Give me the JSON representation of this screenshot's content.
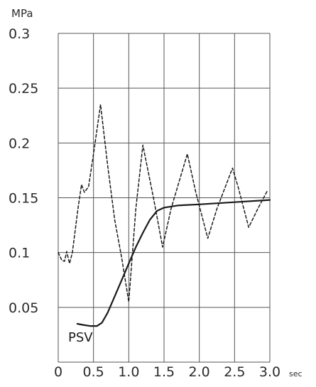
{
  "chart_data": {
    "type": "line",
    "ylabel": "MPa",
    "xlabel": "sec",
    "xlim": [
      0,
      3.0
    ],
    "ylim": [
      0,
      0.3
    ],
    "x_ticks": [
      "0",
      "0.5",
      "1.0",
      "1.5",
      "2.0",
      "2.5",
      "3.0"
    ],
    "y_ticks": [
      "0.05",
      "0.1",
      "0.15",
      "0.2",
      "0.25",
      "0.3"
    ],
    "y_tick_values": [
      0.05,
      0.1,
      0.15,
      0.2,
      0.25,
      0.3
    ],
    "grid": true,
    "series": [
      {
        "name": "PSV",
        "style": "solid",
        "color": "#1a1a1a",
        "points": [
          [
            0.27,
            0.035
          ],
          [
            0.35,
            0.034
          ],
          [
            0.45,
            0.033
          ],
          [
            0.55,
            0.033
          ],
          [
            0.62,
            0.036
          ],
          [
            0.7,
            0.045
          ],
          [
            0.8,
            0.06
          ],
          [
            0.9,
            0.075
          ],
          [
            1.0,
            0.09
          ],
          [
            1.1,
            0.105
          ],
          [
            1.2,
            0.118
          ],
          [
            1.3,
            0.13
          ],
          [
            1.4,
            0.138
          ],
          [
            1.5,
            0.141
          ],
          [
            1.7,
            0.143
          ],
          [
            2.0,
            0.144
          ],
          [
            2.5,
            0.146
          ],
          [
            3.0,
            0.148
          ]
        ]
      },
      {
        "name": "",
        "style": "dashed",
        "color": "#1a1a1a",
        "points": [
          [
            0,
            0.1
          ],
          [
            0.05,
            0.093
          ],
          [
            0.09,
            0.092
          ],
          [
            0.12,
            0.101
          ],
          [
            0.16,
            0.09
          ],
          [
            0.2,
            0.1
          ],
          [
            0.28,
            0.14
          ],
          [
            0.33,
            0.162
          ],
          [
            0.37,
            0.155
          ],
          [
            0.43,
            0.16
          ],
          [
            0.5,
            0.19
          ],
          [
            0.6,
            0.235
          ],
          [
            0.7,
            0.18
          ],
          [
            0.8,
            0.13
          ],
          [
            0.9,
            0.095
          ],
          [
            1.0,
            0.055
          ],
          [
            1.1,
            0.14
          ],
          [
            1.2,
            0.198
          ],
          [
            1.35,
            0.15
          ],
          [
            1.48,
            0.105
          ],
          [
            1.6,
            0.14
          ],
          [
            1.83,
            0.19
          ],
          [
            1.95,
            0.155
          ],
          [
            2.12,
            0.113
          ],
          [
            2.25,
            0.14
          ],
          [
            2.47,
            0.177
          ],
          [
            2.55,
            0.16
          ],
          [
            2.7,
            0.123
          ],
          [
            2.83,
            0.14
          ],
          [
            2.97,
            0.157
          ]
        ]
      }
    ]
  }
}
